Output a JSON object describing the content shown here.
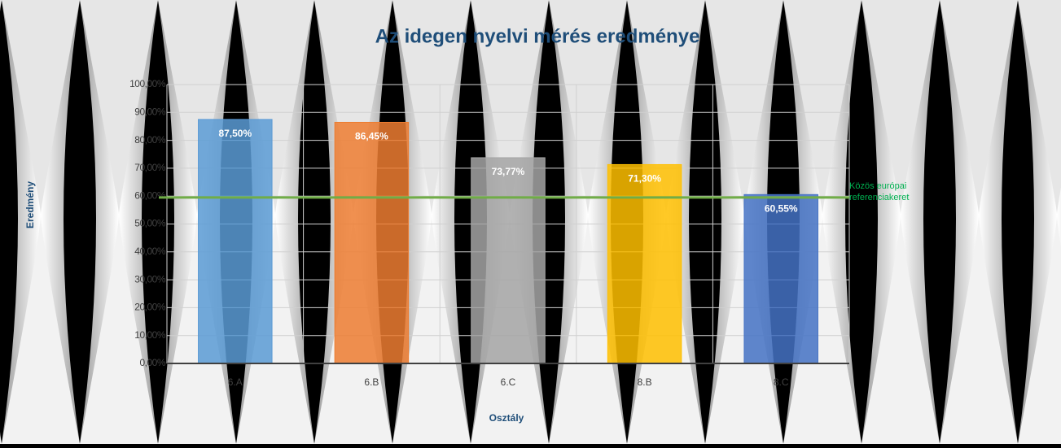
{
  "chart_data": {
    "type": "bar",
    "title": "Az idegen nyelvi mérés eredménye",
    "x_label": "Osztály",
    "y_label": "Eredmény",
    "categories": [
      "6.A",
      "6.B",
      "6.C",
      "8.B",
      "8.C"
    ],
    "values": [
      87.5,
      86.45,
      73.77,
      71.3,
      60.55
    ],
    "value_labels": [
      "87,50%",
      "86,45%",
      "73,77%",
      "71,30%",
      "60,55%"
    ],
    "colors": [
      "#5b9bd5",
      "#ed7d31",
      "#a5a5a5",
      "#ffc000",
      "#4472c4"
    ],
    "ylim": [
      0,
      100
    ],
    "yticks": [
      {
        "value": 0,
        "label": "0,00%"
      },
      {
        "value": 10,
        "label": "10,00%"
      },
      {
        "value": 20,
        "label": "20,00%"
      },
      {
        "value": 30,
        "label": "30,00%"
      },
      {
        "value": 40,
        "label": "40,00%"
      },
      {
        "value": 50,
        "label": "50,00%"
      },
      {
        "value": 60,
        "label": "60,00%"
      },
      {
        "value": 70,
        "label": "70,00%"
      },
      {
        "value": 80,
        "label": "80,00%"
      },
      {
        "value": 90,
        "label": "90,00%"
      },
      {
        "value": 100,
        "label": "100,00%"
      }
    ],
    "grid": true,
    "reference_line": {
      "value": 59.5,
      "color": "#70ad47",
      "label_lines": [
        "Közös európai",
        "referenciakeret"
      ]
    }
  }
}
